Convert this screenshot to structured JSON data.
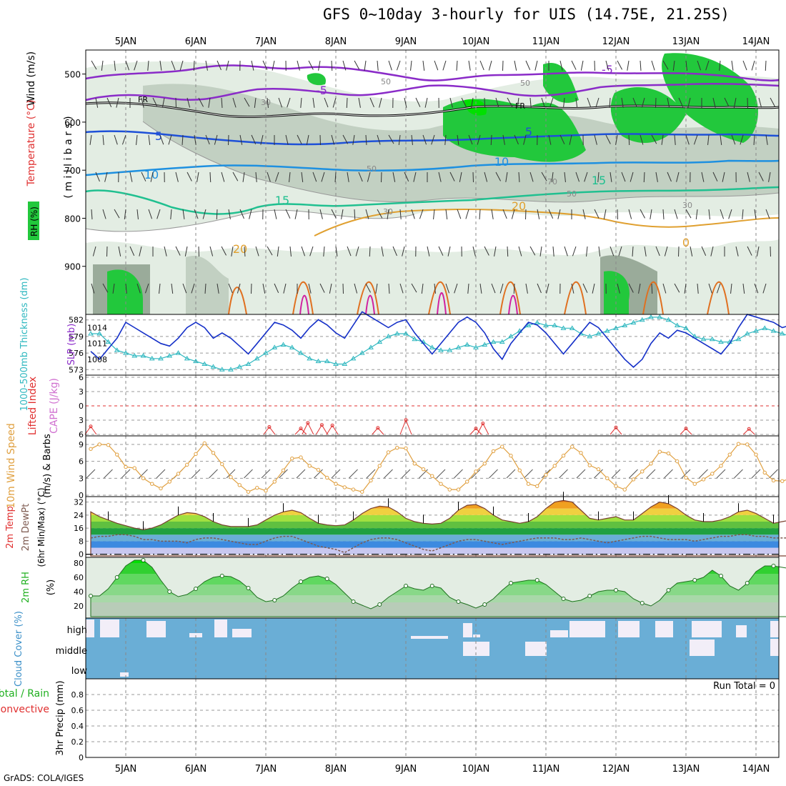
{
  "title": "GFS 0~10day 3-hourly for UIS (14.75E, 21.25S)",
  "credit": "GrADS: COLA/IGES",
  "run_total_label": "Run Total = 0",
  "colors": {
    "rh_green": "#22c83c",
    "rh_light": "#e3ede3",
    "rh_mid": "#c2d0c2",
    "rh_dark": "#9aab9a",
    "slp": "#1530c8",
    "thickness": "#30b8c0",
    "lifted_index": "#e03030",
    "cape": "#d070d0",
    "wind10": "#e0a040",
    "temp_fill": "#e88a20",
    "dewpoint": "#7d5a50",
    "rh2m": "#20c020",
    "cloud": "#6aaed6",
    "cloud_clear": "#f2eef8"
  },
  "chart_data": [
    {
      "id": "upper-air",
      "type": "contour",
      "date_labels": [
        "5JAN",
        "6JAN",
        "7JAN",
        "8JAN",
        "9JAN",
        "10JAN",
        "11JAN",
        "12JAN",
        "13JAN",
        "14JAN"
      ],
      "ylabel_wind": "Wind (m/s)",
      "ylabel_temp": "Temperature (°C)",
      "ylabel_rh": "RH (%)",
      "ylabel_pressure": "( m i l l i b a r s )",
      "yticks": [
        500,
        600,
        700,
        800,
        900
      ],
      "ylim": [
        1000,
        450
      ],
      "isotherm_labels": [
        "-5",
        "-5",
        "FR",
        "FR",
        "5",
        "5",
        "10",
        "10",
        "15",
        "15",
        "20",
        "20",
        "0"
      ],
      "rh_labels": [
        "50",
        "50",
        "30",
        "30",
        "70",
        "50",
        "30",
        "50"
      ]
    },
    {
      "id": "slp-thickness",
      "type": "line",
      "ylabel_left": "1000-500mb Thickness (dm)",
      "ylabel_right": "SLP (mb)",
      "yticks_thickness": [
        573,
        576,
        579,
        582
      ],
      "yticks_slp": [
        1008,
        1011,
        1014
      ],
      "slp": [
        1009.5,
        1008,
        1010,
        1012,
        1015,
        1014,
        1013,
        1012,
        1011,
        1010.5,
        1012,
        1014,
        1015,
        1014,
        1012,
        1013,
        1012,
        1010.5,
        1009,
        1011,
        1013,
        1015,
        1014.5,
        1013.5,
        1012,
        1014,
        1015.5,
        1014.5,
        1013,
        1012,
        1014.5,
        1017,
        1016,
        1015,
        1014,
        1015,
        1015.5,
        1013,
        1011,
        1009,
        1011,
        1013,
        1015,
        1016,
        1015,
        1013,
        1010,
        1008,
        1011,
        1013,
        1015,
        1014.5,
        1013,
        1011,
        1009,
        1011,
        1013,
        1015,
        1014,
        1012,
        1010,
        1008,
        1006.5,
        1008,
        1011,
        1013,
        1012,
        1013.5,
        1013,
        1012,
        1011,
        1010,
        1009,
        1011,
        1014,
        1016.5,
        1016,
        1015.5,
        1015,
        1014,
        1014.5,
        1015,
        1013,
        1012,
        1010,
        1009,
        1011,
        1013,
        1014,
        1013,
        1012,
        1011,
        1009,
        1011,
        1012,
        1011,
        1010,
        1011,
        1011.5,
        1013
      ],
      "thickness": [
        579.5,
        579.5,
        578,
        576.5,
        576,
        575.5,
        575.5,
        575,
        575,
        575.5,
        576,
        575,
        574.5,
        574,
        573.5,
        573,
        573,
        573.5,
        574,
        575,
        576,
        577,
        577.5,
        577,
        576,
        575,
        574.5,
        574.5,
        574,
        574,
        575,
        576,
        577,
        578,
        579,
        579.5,
        579.5,
        578.5,
        578,
        577,
        576.5,
        576.5,
        577,
        577.5,
        577,
        577.5,
        578,
        578,
        579,
        580,
        581,
        581.5,
        581,
        581,
        580.5,
        580.5,
        579.5,
        579,
        579.5,
        580,
        580.5,
        581,
        581.5,
        582,
        582.5,
        582.5,
        582,
        581,
        580.5,
        579,
        578.5,
        578.5,
        578,
        578,
        578.5,
        579.5,
        580,
        580.5,
        580,
        579.5,
        579,
        578.5,
        578.5,
        578,
        578,
        577.5,
        577.5,
        578,
        578.5,
        578,
        577.5,
        578,
        577.5,
        578,
        578,
        577.5,
        577,
        577.5,
        577,
        577.5
      ]
    },
    {
      "id": "stability",
      "type": "line",
      "ylabel_left": "Lifted Index",
      "ylabel_right": "CAPE (J/kg)",
      "yticks": [
        "6",
        "3",
        "0",
        "3",
        "6"
      ],
      "spikes": [
        {
          "day": 0.0,
          "value": 1.6
        },
        {
          "day": 2.55,
          "value": 1.5
        },
        {
          "day": 3.0,
          "value": 1.2
        },
        {
          "day": 3.1,
          "value": 2.3
        },
        {
          "day": 3.3,
          "value": 1.9
        },
        {
          "day": 3.45,
          "value": 1.8
        },
        {
          "day": 4.1,
          "value": 1.3
        },
        {
          "day": 4.5,
          "value": 2.9
        },
        {
          "day": 5.5,
          "value": 1.2
        },
        {
          "day": 5.6,
          "value": 2.2
        },
        {
          "day": 7.5,
          "value": 1.4
        },
        {
          "day": 8.5,
          "value": 1.2
        },
        {
          "day": 9.4,
          "value": 1.1
        }
      ]
    },
    {
      "id": "wind10m",
      "type": "line",
      "ylabel_left": "10m Wind Speed",
      "ylabel_right": "(m/s) & Barbs",
      "yticks": [
        0,
        3,
        6,
        9
      ],
      "speed": [
        8.2,
        9.0,
        8.9,
        7.2,
        5.0,
        4.8,
        3.0,
        2.0,
        1.2,
        2.4,
        3.8,
        5.4,
        7.3,
        9.2,
        7.5,
        5.5,
        3.2,
        1.8,
        0.6,
        1.3,
        0.8,
        2.4,
        4.4,
        6.5,
        6.7,
        5.2,
        4.5,
        3.1,
        2.0,
        1.4,
        1.0,
        0.6,
        2.6,
        5.2,
        7.6,
        8.4,
        8.3,
        5.6,
        4.6,
        3.4,
        2.0,
        1.0,
        1.0,
        2.4,
        4.2,
        5.6,
        7.8,
        8.6,
        7.0,
        4.4,
        2.0,
        1.6,
        3.6,
        5.2,
        7.0,
        8.6,
        7.5,
        5.3,
        4.6,
        3.0,
        1.6,
        1.0,
        2.8,
        4.2,
        5.6,
        7.7,
        7.4,
        6.0,
        3.1,
        2.0,
        2.8,
        3.8,
        5.2,
        7.2,
        9.1,
        9.0,
        7.2,
        4.0,
        2.6,
        2.5,
        3.0,
        2.6,
        4.4,
        6.0,
        8.4,
        8.3,
        6.6,
        3.5,
        3.2,
        3.5,
        6.5,
        8.5,
        8.6,
        6.5,
        4.0,
        3.0,
        3.5,
        2.5,
        3.8,
        2.5
      ]
    },
    {
      "id": "temp2m",
      "type": "area",
      "ylabel_left": "2m Temp",
      "ylabel_mid": "2m DewPt",
      "ylabel_right": "(6hr Min/Max) (°C)",
      "yticks": [
        0,
        8,
        16,
        24,
        32
      ],
      "temp": [
        26,
        23,
        21,
        19,
        17.5,
        16,
        15,
        16,
        18,
        21,
        24,
        25.5,
        25,
        23,
        20,
        18,
        17,
        17,
        17,
        18,
        21,
        24,
        26,
        27,
        25.5,
        22,
        19,
        18,
        17.5,
        18,
        21,
        25,
        28,
        29.5,
        29,
        26,
        22,
        20,
        19,
        18.5,
        19,
        22,
        27,
        30,
        30.5,
        28,
        24,
        21,
        20,
        19,
        20,
        23,
        28,
        32,
        33,
        32,
        27,
        22,
        21,
        22,
        23,
        21,
        21,
        25,
        29,
        32,
        31,
        28,
        24,
        21,
        20,
        20,
        21,
        23,
        26,
        27,
        25,
        22,
        19,
        20,
        21,
        22,
        24,
        27,
        28,
        26,
        23,
        21,
        20,
        20,
        22,
        25,
        28,
        29,
        27,
        23,
        21,
        20,
        19,
        18
      ],
      "dewpt": [
        10,
        11,
        11,
        12,
        12,
        11,
        9,
        9,
        8,
        8,
        8,
        7,
        9,
        10,
        10,
        9,
        8,
        7,
        6,
        6,
        8,
        10,
        11,
        11,
        9,
        7,
        5,
        4,
        3,
        1,
        4,
        7,
        9,
        10,
        10,
        9,
        7,
        5,
        3,
        2,
        4,
        6,
        8,
        9,
        9,
        8,
        7,
        6,
        7,
        8,
        9,
        10,
        10,
        10,
        9,
        9,
        10,
        9,
        8,
        7,
        8,
        9,
        10,
        11,
        11,
        10,
        9,
        9,
        9,
        8,
        9,
        10,
        11,
        11,
        12,
        12,
        11,
        11,
        10,
        10,
        10,
        11,
        11,
        11,
        11,
        10,
        9,
        9,
        9,
        8,
        9,
        10,
        10,
        9,
        8,
        7,
        8,
        9,
        10,
        10
      ]
    },
    {
      "id": "rh2m",
      "type": "area",
      "ylabel_left": "2m RH",
      "ylabel_right": "(%)",
      "yticks": [
        20,
        40,
        60,
        80
      ],
      "rh": [
        34,
        34,
        44,
        60,
        76,
        84,
        84,
        74,
        56,
        40,
        33,
        36,
        44,
        54,
        60,
        62,
        61,
        55,
        45,
        32,
        26,
        28,
        34,
        45,
        54,
        60,
        62,
        58,
        50,
        38,
        26,
        21,
        16,
        22,
        32,
        40,
        48,
        44,
        42,
        48,
        45,
        32,
        26,
        22,
        17,
        22,
        30,
        42,
        52,
        54,
        56,
        56,
        50,
        40,
        30,
        26,
        28,
        34,
        40,
        42,
        42,
        40,
        30,
        24,
        20,
        28,
        42,
        52,
        54,
        56,
        60,
        70,
        62,
        48,
        42,
        52,
        68,
        76,
        76,
        74,
        72,
        62,
        44,
        32,
        28,
        30,
        42,
        55,
        60,
        62,
        56,
        44,
        28,
        24,
        30,
        40,
        52,
        58,
        64,
        62
      ]
    },
    {
      "id": "cloud",
      "type": "bar",
      "ylabel": "Cloud Cover (%)",
      "level_labels": [
        "high",
        "middle",
        "low"
      ]
    },
    {
      "id": "precip",
      "type": "bar",
      "ylabel_left": "Total / Rain",
      "ylabel_left2": "Convective",
      "ylabel_right": "3hr Precip (mm)",
      "yticks": [
        "0",
        "0.2",
        "0.4",
        "0.6",
        "0.8"
      ],
      "date_labels": [
        "5JAN",
        "6JAN",
        "7JAN",
        "8JAN",
        "9JAN",
        "10JAN",
        "11JAN",
        "12JAN",
        "13JAN",
        "14JAN"
      ],
      "values": []
    }
  ]
}
